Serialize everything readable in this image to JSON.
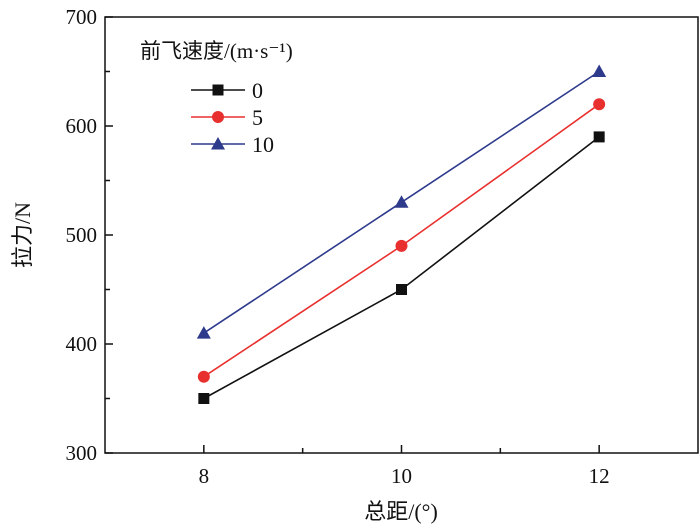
{
  "chart_data": {
    "type": "line",
    "title": "",
    "xlabel": "总距/(°)",
    "ylabel": "拉力/N",
    "x": [
      8,
      10,
      12
    ],
    "xlim": [
      7,
      13
    ],
    "ylim": [
      300,
      700
    ],
    "xticks": [
      8,
      10,
      12
    ],
    "xtick_labels": [
      "8",
      "10",
      "12"
    ],
    "yticks": [
      300,
      400,
      500,
      600,
      700
    ],
    "ytick_labels": [
      "300",
      "400",
      "500",
      "600",
      "700"
    ],
    "grid": false,
    "legend_title": "前飞速度/(m·s⁻¹)",
    "legend_placement": "top-left",
    "series": [
      {
        "name": "0",
        "values": [
          350,
          450,
          590
        ],
        "color": "#111111",
        "marker": "square"
      },
      {
        "name": "5",
        "values": [
          370,
          490,
          620
        ],
        "color": "#e8312f",
        "marker": "circle"
      },
      {
        "name": "10",
        "values": [
          410,
          530,
          650
        ],
        "color": "#2e3a8c",
        "marker": "triangle"
      }
    ]
  }
}
